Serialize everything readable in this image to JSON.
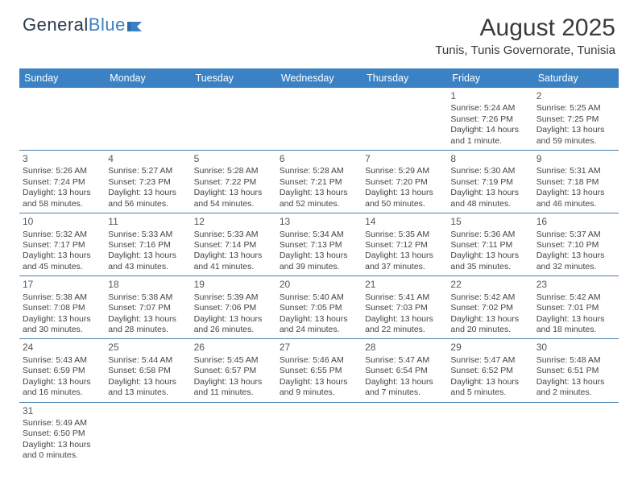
{
  "logo": {
    "text1": "General",
    "text2": "Blue"
  },
  "title": "August 2025",
  "location": "Tunis, Tunis Governorate, Tunisia",
  "colors": {
    "header_bg": "#3b82c4",
    "header_text": "#ffffff",
    "border": "#4a7fb0",
    "text": "#444444",
    "logo_blue": "#3b7fc4"
  },
  "weekdays": [
    "Sunday",
    "Monday",
    "Tuesday",
    "Wednesday",
    "Thursday",
    "Friday",
    "Saturday"
  ],
  "weeks": [
    [
      null,
      null,
      null,
      null,
      null,
      {
        "d": "1",
        "sr": "Sunrise: 5:24 AM",
        "ss": "Sunset: 7:26 PM",
        "dl": "Daylight: 14 hours and 1 minute."
      },
      {
        "d": "2",
        "sr": "Sunrise: 5:25 AM",
        "ss": "Sunset: 7:25 PM",
        "dl": "Daylight: 13 hours and 59 minutes."
      }
    ],
    [
      {
        "d": "3",
        "sr": "Sunrise: 5:26 AM",
        "ss": "Sunset: 7:24 PM",
        "dl": "Daylight: 13 hours and 58 minutes."
      },
      {
        "d": "4",
        "sr": "Sunrise: 5:27 AM",
        "ss": "Sunset: 7:23 PM",
        "dl": "Daylight: 13 hours and 56 minutes."
      },
      {
        "d": "5",
        "sr": "Sunrise: 5:28 AM",
        "ss": "Sunset: 7:22 PM",
        "dl": "Daylight: 13 hours and 54 minutes."
      },
      {
        "d": "6",
        "sr": "Sunrise: 5:28 AM",
        "ss": "Sunset: 7:21 PM",
        "dl": "Daylight: 13 hours and 52 minutes."
      },
      {
        "d": "7",
        "sr": "Sunrise: 5:29 AM",
        "ss": "Sunset: 7:20 PM",
        "dl": "Daylight: 13 hours and 50 minutes."
      },
      {
        "d": "8",
        "sr": "Sunrise: 5:30 AM",
        "ss": "Sunset: 7:19 PM",
        "dl": "Daylight: 13 hours and 48 minutes."
      },
      {
        "d": "9",
        "sr": "Sunrise: 5:31 AM",
        "ss": "Sunset: 7:18 PM",
        "dl": "Daylight: 13 hours and 46 minutes."
      }
    ],
    [
      {
        "d": "10",
        "sr": "Sunrise: 5:32 AM",
        "ss": "Sunset: 7:17 PM",
        "dl": "Daylight: 13 hours and 45 minutes."
      },
      {
        "d": "11",
        "sr": "Sunrise: 5:33 AM",
        "ss": "Sunset: 7:16 PM",
        "dl": "Daylight: 13 hours and 43 minutes."
      },
      {
        "d": "12",
        "sr": "Sunrise: 5:33 AM",
        "ss": "Sunset: 7:14 PM",
        "dl": "Daylight: 13 hours and 41 minutes."
      },
      {
        "d": "13",
        "sr": "Sunrise: 5:34 AM",
        "ss": "Sunset: 7:13 PM",
        "dl": "Daylight: 13 hours and 39 minutes."
      },
      {
        "d": "14",
        "sr": "Sunrise: 5:35 AM",
        "ss": "Sunset: 7:12 PM",
        "dl": "Daylight: 13 hours and 37 minutes."
      },
      {
        "d": "15",
        "sr": "Sunrise: 5:36 AM",
        "ss": "Sunset: 7:11 PM",
        "dl": "Daylight: 13 hours and 35 minutes."
      },
      {
        "d": "16",
        "sr": "Sunrise: 5:37 AM",
        "ss": "Sunset: 7:10 PM",
        "dl": "Daylight: 13 hours and 32 minutes."
      }
    ],
    [
      {
        "d": "17",
        "sr": "Sunrise: 5:38 AM",
        "ss": "Sunset: 7:08 PM",
        "dl": "Daylight: 13 hours and 30 minutes."
      },
      {
        "d": "18",
        "sr": "Sunrise: 5:38 AM",
        "ss": "Sunset: 7:07 PM",
        "dl": "Daylight: 13 hours and 28 minutes."
      },
      {
        "d": "19",
        "sr": "Sunrise: 5:39 AM",
        "ss": "Sunset: 7:06 PM",
        "dl": "Daylight: 13 hours and 26 minutes."
      },
      {
        "d": "20",
        "sr": "Sunrise: 5:40 AM",
        "ss": "Sunset: 7:05 PM",
        "dl": "Daylight: 13 hours and 24 minutes."
      },
      {
        "d": "21",
        "sr": "Sunrise: 5:41 AM",
        "ss": "Sunset: 7:03 PM",
        "dl": "Daylight: 13 hours and 22 minutes."
      },
      {
        "d": "22",
        "sr": "Sunrise: 5:42 AM",
        "ss": "Sunset: 7:02 PM",
        "dl": "Daylight: 13 hours and 20 minutes."
      },
      {
        "d": "23",
        "sr": "Sunrise: 5:42 AM",
        "ss": "Sunset: 7:01 PM",
        "dl": "Daylight: 13 hours and 18 minutes."
      }
    ],
    [
      {
        "d": "24",
        "sr": "Sunrise: 5:43 AM",
        "ss": "Sunset: 6:59 PM",
        "dl": "Daylight: 13 hours and 16 minutes."
      },
      {
        "d": "25",
        "sr": "Sunrise: 5:44 AM",
        "ss": "Sunset: 6:58 PM",
        "dl": "Daylight: 13 hours and 13 minutes."
      },
      {
        "d": "26",
        "sr": "Sunrise: 5:45 AM",
        "ss": "Sunset: 6:57 PM",
        "dl": "Daylight: 13 hours and 11 minutes."
      },
      {
        "d": "27",
        "sr": "Sunrise: 5:46 AM",
        "ss": "Sunset: 6:55 PM",
        "dl": "Daylight: 13 hours and 9 minutes."
      },
      {
        "d": "28",
        "sr": "Sunrise: 5:47 AM",
        "ss": "Sunset: 6:54 PM",
        "dl": "Daylight: 13 hours and 7 minutes."
      },
      {
        "d": "29",
        "sr": "Sunrise: 5:47 AM",
        "ss": "Sunset: 6:52 PM",
        "dl": "Daylight: 13 hours and 5 minutes."
      },
      {
        "d": "30",
        "sr": "Sunrise: 5:48 AM",
        "ss": "Sunset: 6:51 PM",
        "dl": "Daylight: 13 hours and 2 minutes."
      }
    ],
    [
      {
        "d": "31",
        "sr": "Sunrise: 5:49 AM",
        "ss": "Sunset: 6:50 PM",
        "dl": "Daylight: 13 hours and 0 minutes."
      },
      null,
      null,
      null,
      null,
      null,
      null
    ]
  ]
}
